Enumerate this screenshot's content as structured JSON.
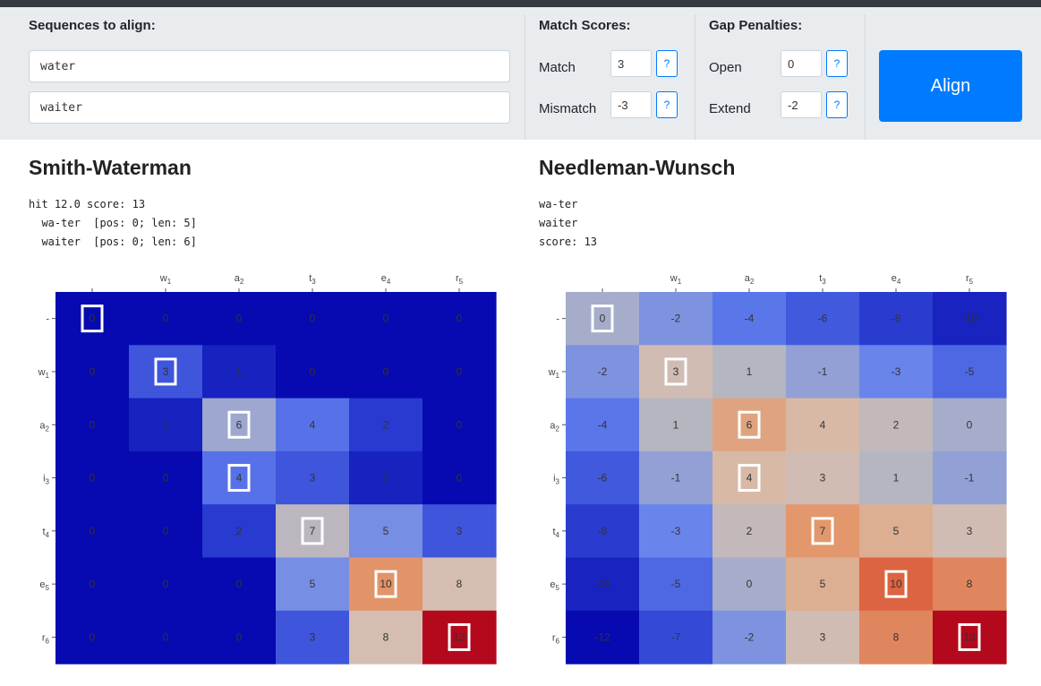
{
  "controls": {
    "sequences_title": "Sequences to align:",
    "seq1": "water",
    "seq2": "waiter",
    "match_title": "Match Scores:",
    "match_label": "Match",
    "match_value": "3",
    "mismatch_label": "Mismatch",
    "mismatch_value": "-3",
    "gap_title": "Gap Penalties:",
    "open_label": "Open",
    "open_value": "0",
    "extend_label": "Extend",
    "extend_value": "-2",
    "help": "?",
    "align_label": "Align"
  },
  "smith_waterman": {
    "title": "Smith-Waterman",
    "summary": "hit 12.0 score: 13\n  wa-ter  [pos: 0; len: 5]\n  waiter  [pos: 0; len: 6]"
  },
  "needleman_wunsch": {
    "title": "Needleman-Wunsch",
    "summary": "wa-ter\nwaiter\nscore: 13"
  },
  "chart_data": [
    {
      "type": "heatmap",
      "name": "Smith-Waterman",
      "x_labels": [
        {
          "c": "",
          "s": ""
        },
        {
          "c": "w",
          "s": "1"
        },
        {
          "c": "a",
          "s": "2"
        },
        {
          "c": "t",
          "s": "3"
        },
        {
          "c": "e",
          "s": "4"
        },
        {
          "c": "r",
          "s": "5"
        }
      ],
      "y_labels": [
        {
          "c": "-",
          "s": ""
        },
        {
          "c": "w",
          "s": "1"
        },
        {
          "c": "a",
          "s": "2"
        },
        {
          "c": "i",
          "s": "3"
        },
        {
          "c": "t",
          "s": "4"
        },
        {
          "c": "e",
          "s": "5"
        },
        {
          "c": "r",
          "s": "6"
        }
      ],
      "values": [
        [
          0,
          0,
          0,
          0,
          0,
          0
        ],
        [
          0,
          3,
          1,
          0,
          0,
          0
        ],
        [
          0,
          1,
          6,
          4,
          2,
          0
        ],
        [
          0,
          0,
          4,
          3,
          1,
          0
        ],
        [
          0,
          0,
          2,
          7,
          5,
          3
        ],
        [
          0,
          0,
          0,
          5,
          10,
          8
        ],
        [
          0,
          0,
          0,
          3,
          8,
          13
        ]
      ],
      "path": [
        [
          0,
          0
        ],
        [
          1,
          1
        ],
        [
          2,
          2
        ],
        [
          3,
          2
        ],
        [
          4,
          3
        ],
        [
          5,
          4
        ],
        [
          6,
          5
        ]
      ],
      "vmin": 0,
      "vmax": 13,
      "colormap": "coolwarm"
    },
    {
      "type": "heatmap",
      "name": "Needleman-Wunsch",
      "x_labels": [
        {
          "c": "",
          "s": ""
        },
        {
          "c": "w",
          "s": "1"
        },
        {
          "c": "a",
          "s": "2"
        },
        {
          "c": "t",
          "s": "3"
        },
        {
          "c": "e",
          "s": "4"
        },
        {
          "c": "r",
          "s": "5"
        }
      ],
      "y_labels": [
        {
          "c": "-",
          "s": ""
        },
        {
          "c": "w",
          "s": "1"
        },
        {
          "c": "a",
          "s": "2"
        },
        {
          "c": "i",
          "s": "3"
        },
        {
          "c": "t",
          "s": "4"
        },
        {
          "c": "e",
          "s": "5"
        },
        {
          "c": "r",
          "s": "6"
        }
      ],
      "values": [
        [
          0,
          -2,
          -4,
          -6,
          -8,
          -10
        ],
        [
          -2,
          3,
          1,
          -1,
          -3,
          -5
        ],
        [
          -4,
          1,
          6,
          4,
          2,
          0
        ],
        [
          -6,
          -1,
          4,
          3,
          1,
          -1
        ],
        [
          -8,
          -3,
          2,
          7,
          5,
          3
        ],
        [
          -10,
          -5,
          0,
          5,
          10,
          8
        ],
        [
          -12,
          -7,
          -2,
          3,
          8,
          13
        ]
      ],
      "path": [
        [
          0,
          0
        ],
        [
          1,
          1
        ],
        [
          2,
          2
        ],
        [
          3,
          2
        ],
        [
          4,
          3
        ],
        [
          5,
          4
        ],
        [
          6,
          5
        ]
      ],
      "vmin": -12,
      "vmax": 13,
      "colormap": "coolwarm"
    }
  ]
}
